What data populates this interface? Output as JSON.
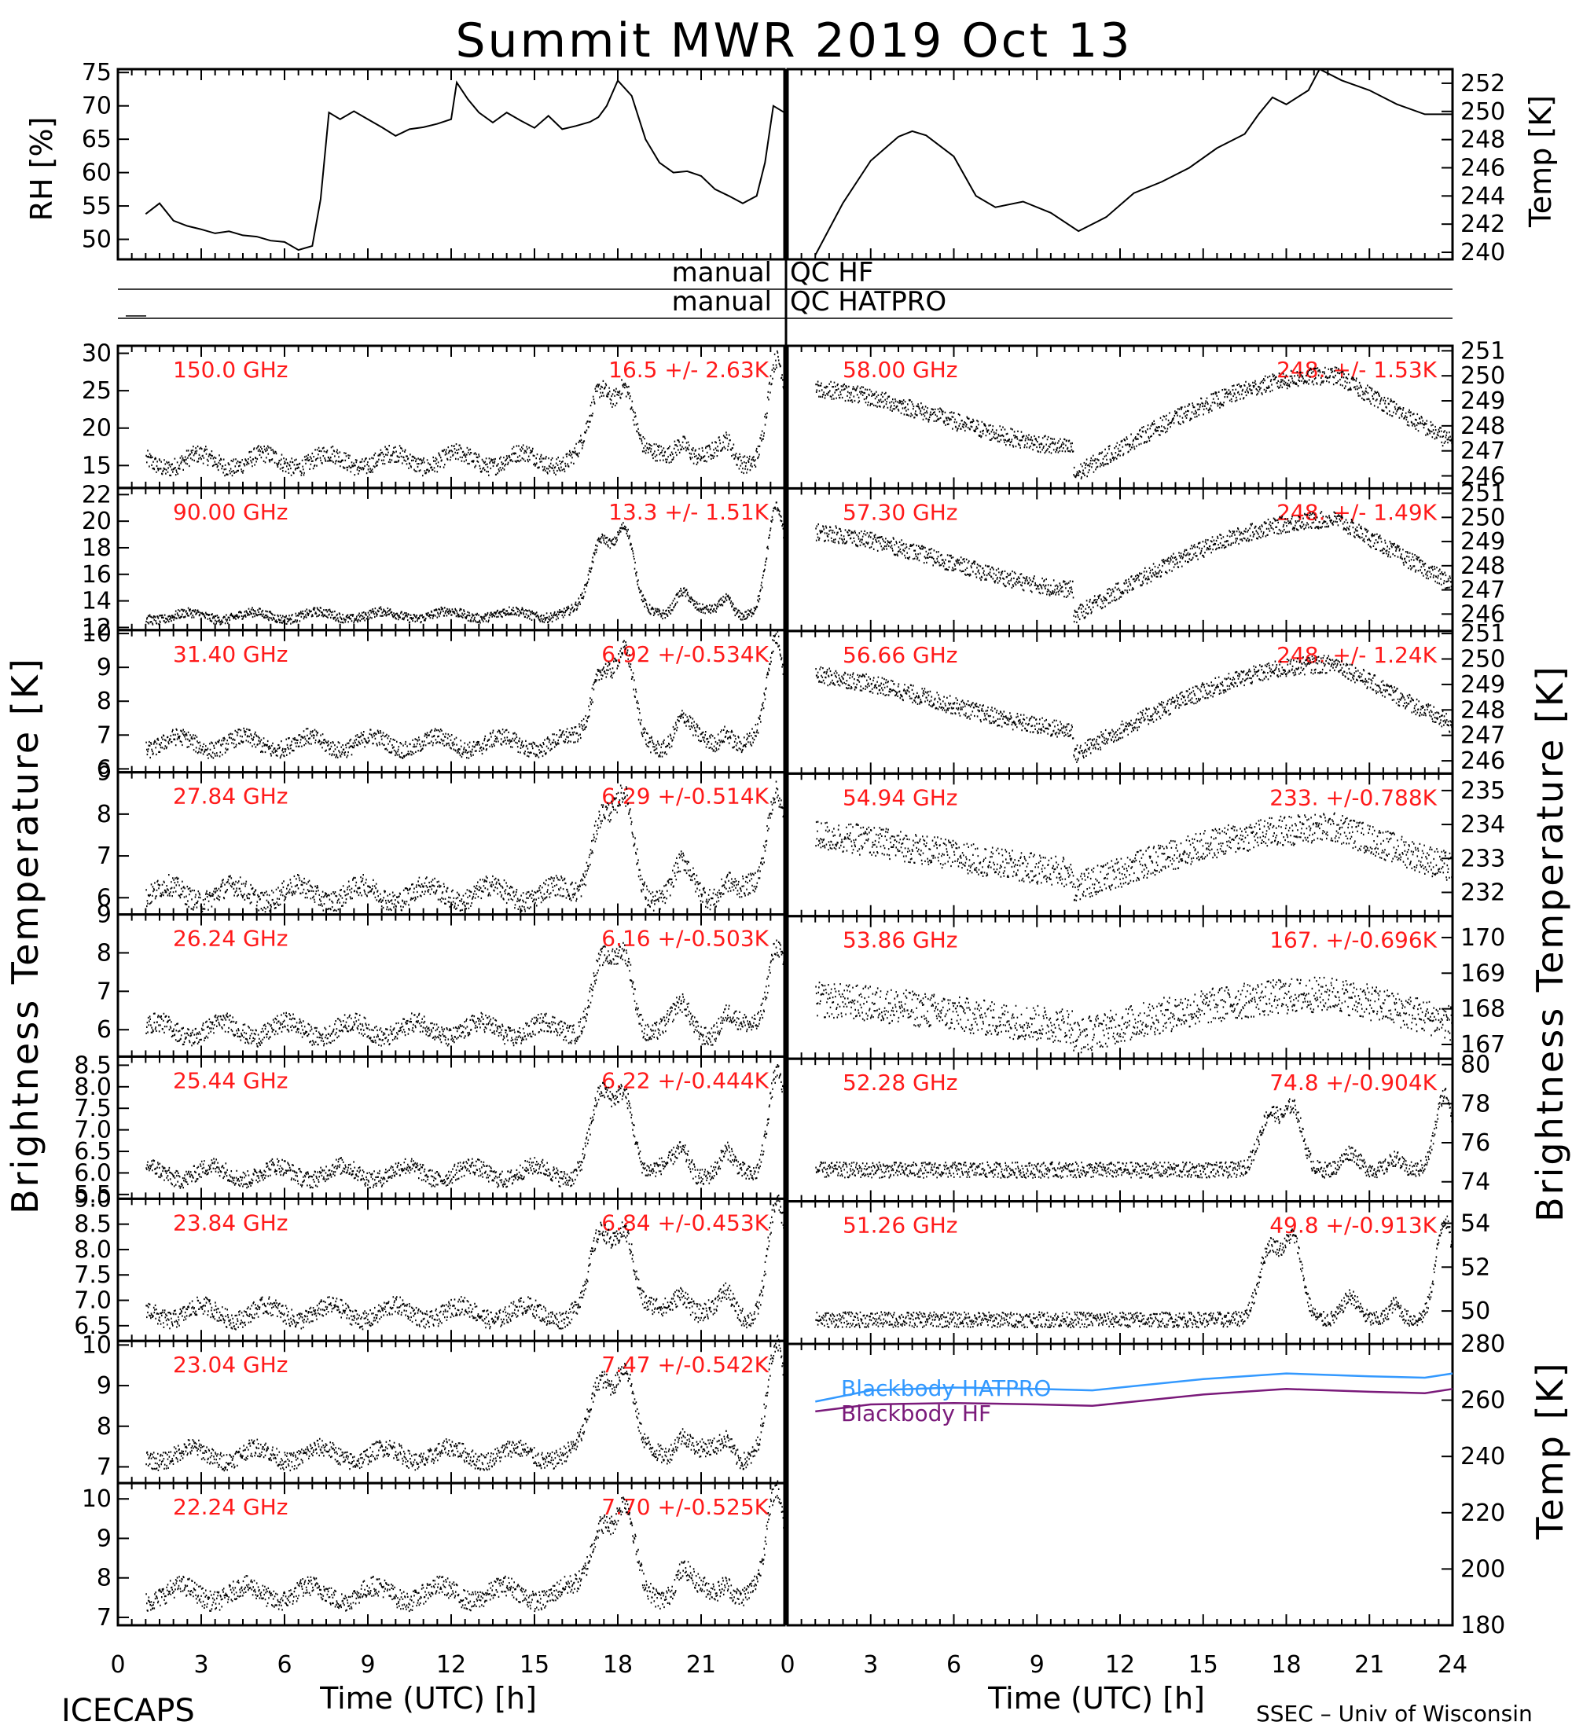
{
  "header": {
    "title": "Summit MWR 2019 Oct 13",
    "footer_left": "ICECAPS",
    "footer_right": "SSEC – Univ of Wisconsin"
  },
  "axes_text": {
    "rh_label": "RH [%]",
    "temp_label": "Temp [K]",
    "tb_label": "Brightness Temperature [K]",
    "x_label": "Time (UTC) [h]",
    "qc_hf": "QC HF",
    "qc_hatpro": "QC HATPRO",
    "qc_manual": "manual"
  },
  "chart_data": {
    "type": "line",
    "x_ticks": [
      "0",
      "3",
      "6",
      "9",
      "12",
      "15",
      "18",
      "21",
      "0"
    ],
    "x_ticks_right": [
      "0",
      "3",
      "6",
      "9",
      "12",
      "15",
      "18",
      "21",
      "24"
    ],
    "xlim": [
      0,
      24
    ],
    "met": {
      "rh": {
        "ylim": [
          47,
          75.5
        ],
        "ticks": [
          "50",
          "55",
          "60",
          "65",
          "70",
          "75"
        ],
        "points": [
          [
            1.0,
            53.8
          ],
          [
            1.5,
            55.4
          ],
          [
            2.0,
            52.8
          ],
          [
            2.5,
            52.0
          ],
          [
            3.0,
            51.5
          ],
          [
            3.5,
            50.9
          ],
          [
            4.0,
            51.2
          ],
          [
            4.5,
            50.6
          ],
          [
            5.0,
            50.4
          ],
          [
            5.5,
            49.8
          ],
          [
            6.0,
            49.6
          ],
          [
            6.5,
            48.4
          ],
          [
            7.0,
            49.0
          ],
          [
            7.3,
            56.0
          ],
          [
            7.6,
            69.0
          ],
          [
            8.0,
            68.0
          ],
          [
            8.5,
            69.2
          ],
          [
            9.0,
            68.0
          ],
          [
            9.5,
            66.8
          ],
          [
            10.0,
            65.5
          ],
          [
            10.5,
            66.5
          ],
          [
            11.0,
            66.8
          ],
          [
            11.5,
            67.3
          ],
          [
            12.0,
            68.0
          ],
          [
            12.2,
            73.5
          ],
          [
            12.6,
            71.0
          ],
          [
            13.0,
            69.0
          ],
          [
            13.5,
            67.5
          ],
          [
            14.0,
            69.0
          ],
          [
            14.5,
            67.8
          ],
          [
            15.0,
            66.7
          ],
          [
            15.5,
            68.5
          ],
          [
            16.0,
            66.5
          ],
          [
            16.5,
            67.0
          ],
          [
            17.0,
            67.6
          ],
          [
            17.3,
            68.3
          ],
          [
            17.6,
            70.0
          ],
          [
            18.0,
            73.8
          ],
          [
            18.5,
            71.5
          ],
          [
            19.0,
            65.0
          ],
          [
            19.5,
            61.5
          ],
          [
            20.0,
            60.0
          ],
          [
            20.5,
            60.2
          ],
          [
            21.0,
            59.5
          ],
          [
            21.5,
            57.5
          ],
          [
            22.0,
            56.5
          ],
          [
            22.5,
            55.4
          ],
          [
            23.0,
            56.5
          ],
          [
            23.3,
            61.5
          ],
          [
            23.6,
            70.0
          ],
          [
            24.0,
            69.0
          ]
        ]
      },
      "temp": {
        "ylim": [
          239.5,
          253
        ],
        "ticks": [
          "240",
          "242",
          "244",
          "246",
          "248",
          "250",
          "252"
        ],
        "points": [
          [
            1.0,
            239.8
          ],
          [
            2.0,
            243.5
          ],
          [
            3.0,
            246.5
          ],
          [
            4.0,
            248.2
          ],
          [
            4.5,
            248.6
          ],
          [
            5.0,
            248.3
          ],
          [
            6.0,
            246.8
          ],
          [
            6.8,
            244.0
          ],
          [
            7.5,
            243.2
          ],
          [
            8.5,
            243.6
          ],
          [
            9.5,
            242.8
          ],
          [
            10.5,
            241.5
          ],
          [
            11.5,
            242.5
          ],
          [
            12.5,
            244.2
          ],
          [
            13.5,
            245.0
          ],
          [
            14.5,
            246.0
          ],
          [
            15.5,
            247.4
          ],
          [
            16.5,
            248.4
          ],
          [
            17.0,
            249.8
          ],
          [
            17.5,
            251.0
          ],
          [
            18.0,
            250.5
          ],
          [
            18.8,
            251.5
          ],
          [
            19.2,
            253.0
          ],
          [
            20.0,
            252.2
          ],
          [
            21.0,
            251.5
          ],
          [
            22.0,
            250.5
          ],
          [
            23.0,
            249.8
          ],
          [
            24.0,
            249.8
          ]
        ]
      }
    },
    "series_left": [
      {
        "freq": "150.0 GHz",
        "stat": "16.5 +/-  2.63K",
        "ylim": [
          12,
          31
        ],
        "ticks": [
          "15",
          "20",
          "25",
          "30"
        ],
        "base": 15.5,
        "noise": 1.2,
        "peak": 9.5,
        "trend": 0.5
      },
      {
        "freq": "90.00 GHz",
        "stat": "13.3 +/-  1.51K",
        "ylim": [
          11.8,
          22.5
        ],
        "ticks": [
          "12",
          "14",
          "16",
          "18",
          "20",
          "22"
        ],
        "base": 12.8,
        "noise": 0.35,
        "peak": 6.0,
        "trend": 0.3
      },
      {
        "freq": "31.40 GHz",
        "stat": "6.92 +/-0.534K",
        "ylim": [
          5.9,
          10.1
        ],
        "ticks": [
          "6",
          "7",
          "8",
          "9",
          "10"
        ],
        "base": 6.75,
        "noise": 0.25,
        "peak": 2.4,
        "trend": 0
      },
      {
        "freq": "27.84 GHz",
        "stat": "6.29 +/-0.514K",
        "ylim": [
          5.6,
          9.0
        ],
        "ticks": [
          "6",
          "7",
          "8",
          "9"
        ],
        "base": 6.1,
        "noise": 0.25,
        "peak": 2.0,
        "trend": 0
      },
      {
        "freq": "26.24 GHz",
        "stat": "6.16 +/-0.503K",
        "ylim": [
          5.3,
          9.0
        ],
        "ticks": [
          "6",
          "7",
          "8",
          "9"
        ],
        "base": 6.0,
        "noise": 0.25,
        "peak": 1.8,
        "trend": 0
      },
      {
        "freq": "25.44 GHz",
        "stat": "6.22 +/-0.444K",
        "ylim": [
          5.4,
          8.7
        ],
        "ticks": [
          "5.5",
          "6.0",
          "6.5",
          "7.0",
          "7.5",
          "8.0",
          "8.5"
        ],
        "base": 6.0,
        "noise": 0.2,
        "peak": 1.8,
        "trend": 0
      },
      {
        "freq": "23.84 GHz",
        "stat": "6.84 +/-0.453K",
        "ylim": [
          6.2,
          9.0
        ],
        "ticks": [
          "6.5",
          "7.0",
          "7.5",
          "8.0",
          "8.5",
          "9.0"
        ],
        "base": 6.75,
        "noise": 0.18,
        "peak": 1.6,
        "trend": 0
      },
      {
        "freq": "23.04 GHz",
        "stat": "7.47 +/-0.542K",
        "ylim": [
          6.6,
          10.1
        ],
        "ticks": [
          "7",
          "8",
          "9",
          "10"
        ],
        "base": 7.3,
        "noise": 0.22,
        "peak": 2.0,
        "trend": 0
      },
      {
        "freq": "22.24 GHz",
        "stat": "7.70 +/-0.525K",
        "ylim": [
          6.8,
          10.4
        ],
        "ticks": [
          "7",
          "8",
          "9",
          "10"
        ],
        "base": 7.6,
        "noise": 0.25,
        "peak": 2.0,
        "trend": 0
      }
    ],
    "series_right": [
      {
        "freq": "58.00 GHz",
        "stat": "248. +/-  1.53K",
        "ylim": [
          245.5,
          251.2
        ],
        "ticks": [
          "246",
          "247",
          "248",
          "249",
          "250",
          "251"
        ],
        "mid": 248.0,
        "amp": 2.0,
        "noise": 0.35
      },
      {
        "freq": "57.30 GHz",
        "stat": "248. +/-  1.49K",
        "ylim": [
          245.3,
          251.2
        ],
        "ticks": [
          "246",
          "247",
          "248",
          "249",
          "250",
          "251"
        ],
        "mid": 247.9,
        "amp": 2.0,
        "noise": 0.35
      },
      {
        "freq": "56.66 GHz",
        "stat": "248. +/-  1.24K",
        "ylim": [
          245.5,
          251.1
        ],
        "ticks": [
          "246",
          "247",
          "248",
          "249",
          "250",
          "251"
        ],
        "mid": 248.0,
        "amp": 1.8,
        "noise": 0.35
      },
      {
        "freq": "54.94 GHz",
        "stat": "233. +/-0.788K",
        "ylim": [
          231.3,
          235.5
        ],
        "ticks": [
          "232",
          "233",
          "234",
          "235"
        ],
        "mid": 233.0,
        "amp": 0.9,
        "noise": 0.45
      },
      {
        "freq": "53.86 GHz",
        "stat": "167. +/-0.696K",
        "ylim": [
          166.6,
          170.6
        ],
        "ticks": [
          "167",
          "168",
          "169",
          "170"
        ],
        "mid": 167.8,
        "amp": 0.6,
        "noise": 0.5
      },
      {
        "freq": "52.28 GHz",
        "stat": "74.8 +/-0.904K",
        "ylim": [
          73.0,
          80.3
        ],
        "ticks": [
          "74",
          "76",
          "78",
          "80"
        ],
        "mid": 74.6,
        "amp": 0.0,
        "noise": 0.4,
        "peak": 3.0
      },
      {
        "freq": "51.26 GHz",
        "stat": "49.8 +/-0.913K",
        "ylim": [
          48.5,
          55.0
        ],
        "ticks": [
          "50",
          "52",
          "54"
        ],
        "mid": 49.6,
        "amp": 0.0,
        "noise": 0.35,
        "peak": 3.5
      }
    ],
    "blackbody": {
      "ylim": [
        180,
        280
      ],
      "ticks": [
        "180",
        "200",
        "220",
        "240",
        "260",
        "280"
      ],
      "series": [
        {
          "name": "Blackbody HATPRO",
          "color": "#3399ff",
          "points": [
            [
              1.0,
              259.5
            ],
            [
              3.0,
              263.5
            ],
            [
              6.0,
              264.5
            ],
            [
              9.0,
              264.0
            ],
            [
              11.0,
              263.5
            ],
            [
              13.0,
              265.5
            ],
            [
              15.0,
              267.5
            ],
            [
              18.0,
              269.5
            ],
            [
              21.0,
              268.5
            ],
            [
              23.0,
              268.0
            ],
            [
              24.0,
              269.5
            ]
          ]
        },
        {
          "name": "Blackbody HF",
          "color": "#7a1a7a",
          "points": [
            [
              1.0,
              256.0
            ],
            [
              3.0,
              258.5
            ],
            [
              6.0,
              259.0
            ],
            [
              9.0,
              258.5
            ],
            [
              11.0,
              258.0
            ],
            [
              13.0,
              260.0
            ],
            [
              15.0,
              262.0
            ],
            [
              18.0,
              264.0
            ],
            [
              21.0,
              263.0
            ],
            [
              23.0,
              262.5
            ],
            [
              24.0,
              264.0
            ]
          ]
        }
      ]
    }
  }
}
